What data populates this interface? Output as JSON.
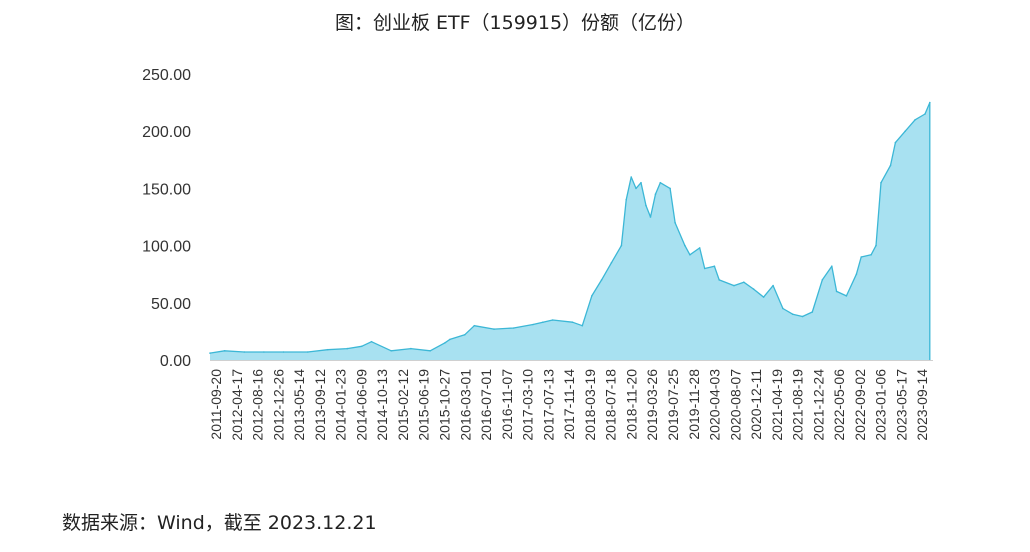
{
  "title": "图：创业板 ETF（159915）份额（亿份）",
  "source_note": "数据来源：Wind，截至 2023.12.21",
  "colors": {
    "fill": "#a8e1f1",
    "line": "#3cb7d6",
    "axis": "#d0d0d0"
  },
  "chart_data": {
    "type": "area",
    "title": "图：创业板 ETF（159915）份额（亿份）",
    "xlabel": "",
    "ylabel": "",
    "ylim": [
      0,
      250
    ],
    "yticks": [
      "0.00",
      "50.00",
      "100.00",
      "150.00",
      "200.00",
      "250.00"
    ],
    "grid": false,
    "legend": "none",
    "categories": [
      "2011-09-20",
      "2012-04-17",
      "2012-08-16",
      "2012-12-26",
      "2013-05-14",
      "2013-09-12",
      "2014-01-23",
      "2014-06-09",
      "2014-10-13",
      "2015-02-12",
      "2015-06-19",
      "2015-10-27",
      "2016-03-01",
      "2016-07-01",
      "2016-11-07",
      "2017-03-10",
      "2017-07-13",
      "2017-11-14",
      "2018-03-19",
      "2018-07-18",
      "2018-11-20",
      "2019-03-26",
      "2019-07-25",
      "2019-11-28",
      "2020-04-03",
      "2020-08-07",
      "2020-12-11",
      "2021-04-19",
      "2021-08-19",
      "2021-12-24",
      "2022-05-06",
      "2022-09-02",
      "2023-01-06",
      "2023-05-17",
      "2023-09-14"
    ],
    "x": [
      "2011-09",
      "2011-12",
      "2012-04",
      "2012-08",
      "2012-12",
      "2013-05",
      "2013-09",
      "2014-01",
      "2014-04",
      "2014-06",
      "2014-10",
      "2015-02",
      "2015-06",
      "2015-09",
      "2015-10",
      "2016-01",
      "2016-03",
      "2016-07",
      "2016-11",
      "2017-03",
      "2017-05",
      "2017-07",
      "2017-11",
      "2018-01",
      "2018-03",
      "2018-05",
      "2018-07",
      "2018-09",
      "2018-10",
      "2018-11",
      "2018-12",
      "2019-01",
      "2019-02",
      "2019-03",
      "2019-04",
      "2019-05",
      "2019-07",
      "2019-08",
      "2019-10",
      "2019-11",
      "2020-01",
      "2020-02",
      "2020-04",
      "2020-05",
      "2020-08",
      "2020-10",
      "2020-12",
      "2021-02",
      "2021-04",
      "2021-06",
      "2021-08",
      "2021-10",
      "2021-12",
      "2022-02",
      "2022-04",
      "2022-05",
      "2022-07",
      "2022-09",
      "2022-10",
      "2022-12",
      "2023-01",
      "2023-02",
      "2023-04",
      "2023-05",
      "2023-07",
      "2023-09",
      "2023-11",
      "2023-12"
    ],
    "values": [
      6,
      8,
      7,
      7,
      7,
      7,
      9,
      10,
      12,
      16,
      8,
      10,
      8,
      15,
      18,
      22,
      30,
      27,
      28,
      31,
      33,
      35,
      33,
      30,
      56,
      70,
      85,
      100,
      140,
      160,
      150,
      155,
      135,
      125,
      145,
      155,
      150,
      120,
      100,
      92,
      98,
      80,
      82,
      70,
      65,
      68,
      62,
      55,
      65,
      45,
      40,
      38,
      42,
      70,
      82,
      60,
      56,
      75,
      90,
      92,
      100,
      155,
      170,
      190,
      200,
      210,
      215,
      225
    ]
  }
}
